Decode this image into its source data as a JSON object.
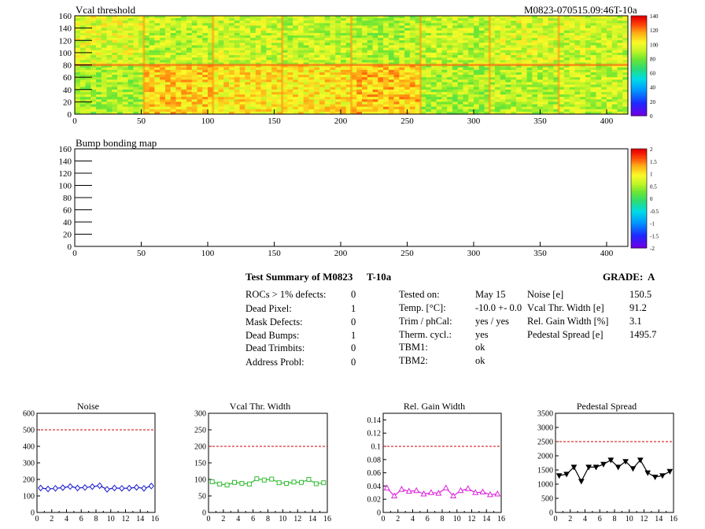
{
  "header_right": "M0823-070515.09:46T-10a",
  "chart_data": [
    {
      "type": "heatmap",
      "title": "Vcal threshold",
      "x_ticks": [
        "0",
        "50",
        "100",
        "150",
        "200",
        "250",
        "300",
        "350",
        "400"
      ],
      "y_ticks": [
        "0",
        "20",
        "40",
        "60",
        "80",
        "100",
        "120",
        "140",
        "160"
      ],
      "xlim": [
        0,
        416
      ],
      "ylim": [
        0,
        160
      ],
      "colorbar_ticks": [
        "0",
        "20",
        "40",
        "60",
        "80",
        "100",
        "120",
        "140"
      ],
      "colorbar_range": [
        0,
        140
      ],
      "roc_mean_thresholds": {
        "top_row": [
          98,
          92,
          94,
          92,
          90,
          92,
          96,
          94
        ],
        "bottom_row": [
          88,
          110,
          106,
          106,
          112,
          88,
          90,
          92
        ]
      }
    },
    {
      "type": "heatmap",
      "title": "Bump bonding map",
      "x_ticks": [
        "0",
        "50",
        "100",
        "150",
        "200",
        "250",
        "300",
        "350",
        "400"
      ],
      "y_ticks": [
        "0",
        "20",
        "40",
        "60",
        "80",
        "100",
        "120",
        "140",
        "160"
      ],
      "xlim": [
        0,
        416
      ],
      "ylim": [
        0,
        160
      ],
      "colorbar_ticks": [
        "-2",
        "-1.5",
        "-1",
        "-0.5",
        "0",
        "0.5",
        "1",
        "1.5",
        "2"
      ],
      "colorbar_range": [
        -2,
        2
      ]
    },
    {
      "type": "line",
      "title": "Noise",
      "x": [
        0,
        1,
        2,
        3,
        4,
        5,
        6,
        7,
        8,
        9,
        10,
        11,
        12,
        13,
        14,
        15
      ],
      "values": [
        148,
        142,
        146,
        150,
        157,
        148,
        151,
        156,
        162,
        140,
        148,
        146,
        147,
        152,
        146,
        160
      ],
      "x_ticks": [
        "0",
        "2",
        "4",
        "6",
        "8",
        "10",
        "12",
        "14",
        "16"
      ],
      "y_ticks": [
        "0",
        "100",
        "200",
        "300",
        "400",
        "500",
        "600"
      ],
      "xlim": [
        0,
        16
      ],
      "ylim": [
        0,
        600
      ],
      "reference_line": 500,
      "marker": "diamond",
      "color": "#1a1acc"
    },
    {
      "type": "line",
      "title": "Vcal Thr. Width",
      "x": [
        0,
        1,
        2,
        3,
        4,
        5,
        6,
        7,
        8,
        9,
        10,
        11,
        12,
        13,
        14,
        15
      ],
      "values": [
        93,
        86,
        83,
        91,
        88,
        86,
        102,
        98,
        101,
        90,
        88,
        92,
        91,
        100,
        87,
        90
      ],
      "x_ticks": [
        "0",
        "2",
        "4",
        "6",
        "8",
        "10",
        "12",
        "14",
        "16"
      ],
      "y_ticks": [
        "0",
        "50",
        "100",
        "150",
        "200",
        "250",
        "300"
      ],
      "xlim": [
        0,
        16
      ],
      "ylim": [
        0,
        300
      ],
      "reference_line": 200,
      "marker": "square",
      "color": "#33bb33"
    },
    {
      "type": "line",
      "title": "Rel. Gain Width",
      "x": [
        0,
        1,
        2,
        3,
        4,
        5,
        6,
        7,
        8,
        9,
        10,
        11,
        12,
        13,
        14,
        15
      ],
      "values": [
        0.037,
        0.025,
        0.035,
        0.032,
        0.033,
        0.028,
        0.03,
        0.029,
        0.037,
        0.025,
        0.033,
        0.036,
        0.03,
        0.031,
        0.027,
        0.028
      ],
      "x_ticks": [
        "0",
        "2",
        "4",
        "6",
        "8",
        "10",
        "12",
        "14",
        "16"
      ],
      "y_ticks": [
        "0",
        "0.02",
        "0.04",
        "0.06",
        "0.08",
        "0.1",
        "0.12",
        "0.14"
      ],
      "xlim": [
        0,
        16
      ],
      "ylim": [
        0,
        0.15
      ],
      "reference_line": 0.1,
      "marker": "triangle",
      "color": "#dd22dd"
    },
    {
      "type": "line",
      "title": "Pedestal Spread",
      "x": [
        0,
        1,
        2,
        3,
        4,
        5,
        6,
        7,
        8,
        9,
        10,
        11,
        12,
        13,
        14,
        15
      ],
      "values": [
        1300,
        1350,
        1600,
        1100,
        1600,
        1600,
        1700,
        1850,
        1600,
        1800,
        1550,
        1850,
        1400,
        1250,
        1300,
        1450
      ],
      "x_ticks": [
        "0",
        "2",
        "4",
        "6",
        "8",
        "10",
        "12",
        "14",
        "16"
      ],
      "y_ticks": [
        "0",
        "500",
        "1000",
        "1500",
        "2000",
        "2500",
        "3000",
        "3500"
      ],
      "xlim": [
        0,
        16
      ],
      "ylim": [
        0,
        3500
      ],
      "reference_line": 2500,
      "marker": "triangle-down",
      "color": "#000000"
    }
  ],
  "summary": {
    "title": "Test Summary of M0823",
    "temp_label": "T-10a",
    "grade": "GRADE:  A",
    "col1": [
      {
        "label": "ROCs > 1% defects:",
        "value": "0"
      },
      {
        "label": "Dead Pixel:",
        "value": "1"
      },
      {
        "label": "Mask Defects:",
        "value": "0"
      },
      {
        "label": "Dead Bumps:",
        "value": "1"
      },
      {
        "label": "Dead Trimbits:",
        "value": "0"
      },
      {
        "label": "Address Probl:",
        "value": "0"
      }
    ],
    "col2": [
      {
        "label": "Tested on:",
        "value": "May 15"
      },
      {
        "label": "Temp. [°C]:",
        "value": "-10.0 +- 0.0"
      },
      {
        "label": "Trim / phCal:",
        "value": "yes / yes"
      },
      {
        "label": "Therm. cycl.:",
        "value": "yes"
      },
      {
        "label": "TBM1:",
        "value": "ok"
      },
      {
        "label": "TBM2:",
        "value": "ok"
      }
    ],
    "col3": [
      {
        "label": "Noise [e]",
        "value": "150.5"
      },
      {
        "label": "Vcal Thr. Width [e]",
        "value": "91.2"
      },
      {
        "label": "Rel. Gain Width [%]",
        "value": "3.1"
      },
      {
        "label": "Pedestal Spread [e]",
        "value": "1495.7"
      }
    ]
  }
}
